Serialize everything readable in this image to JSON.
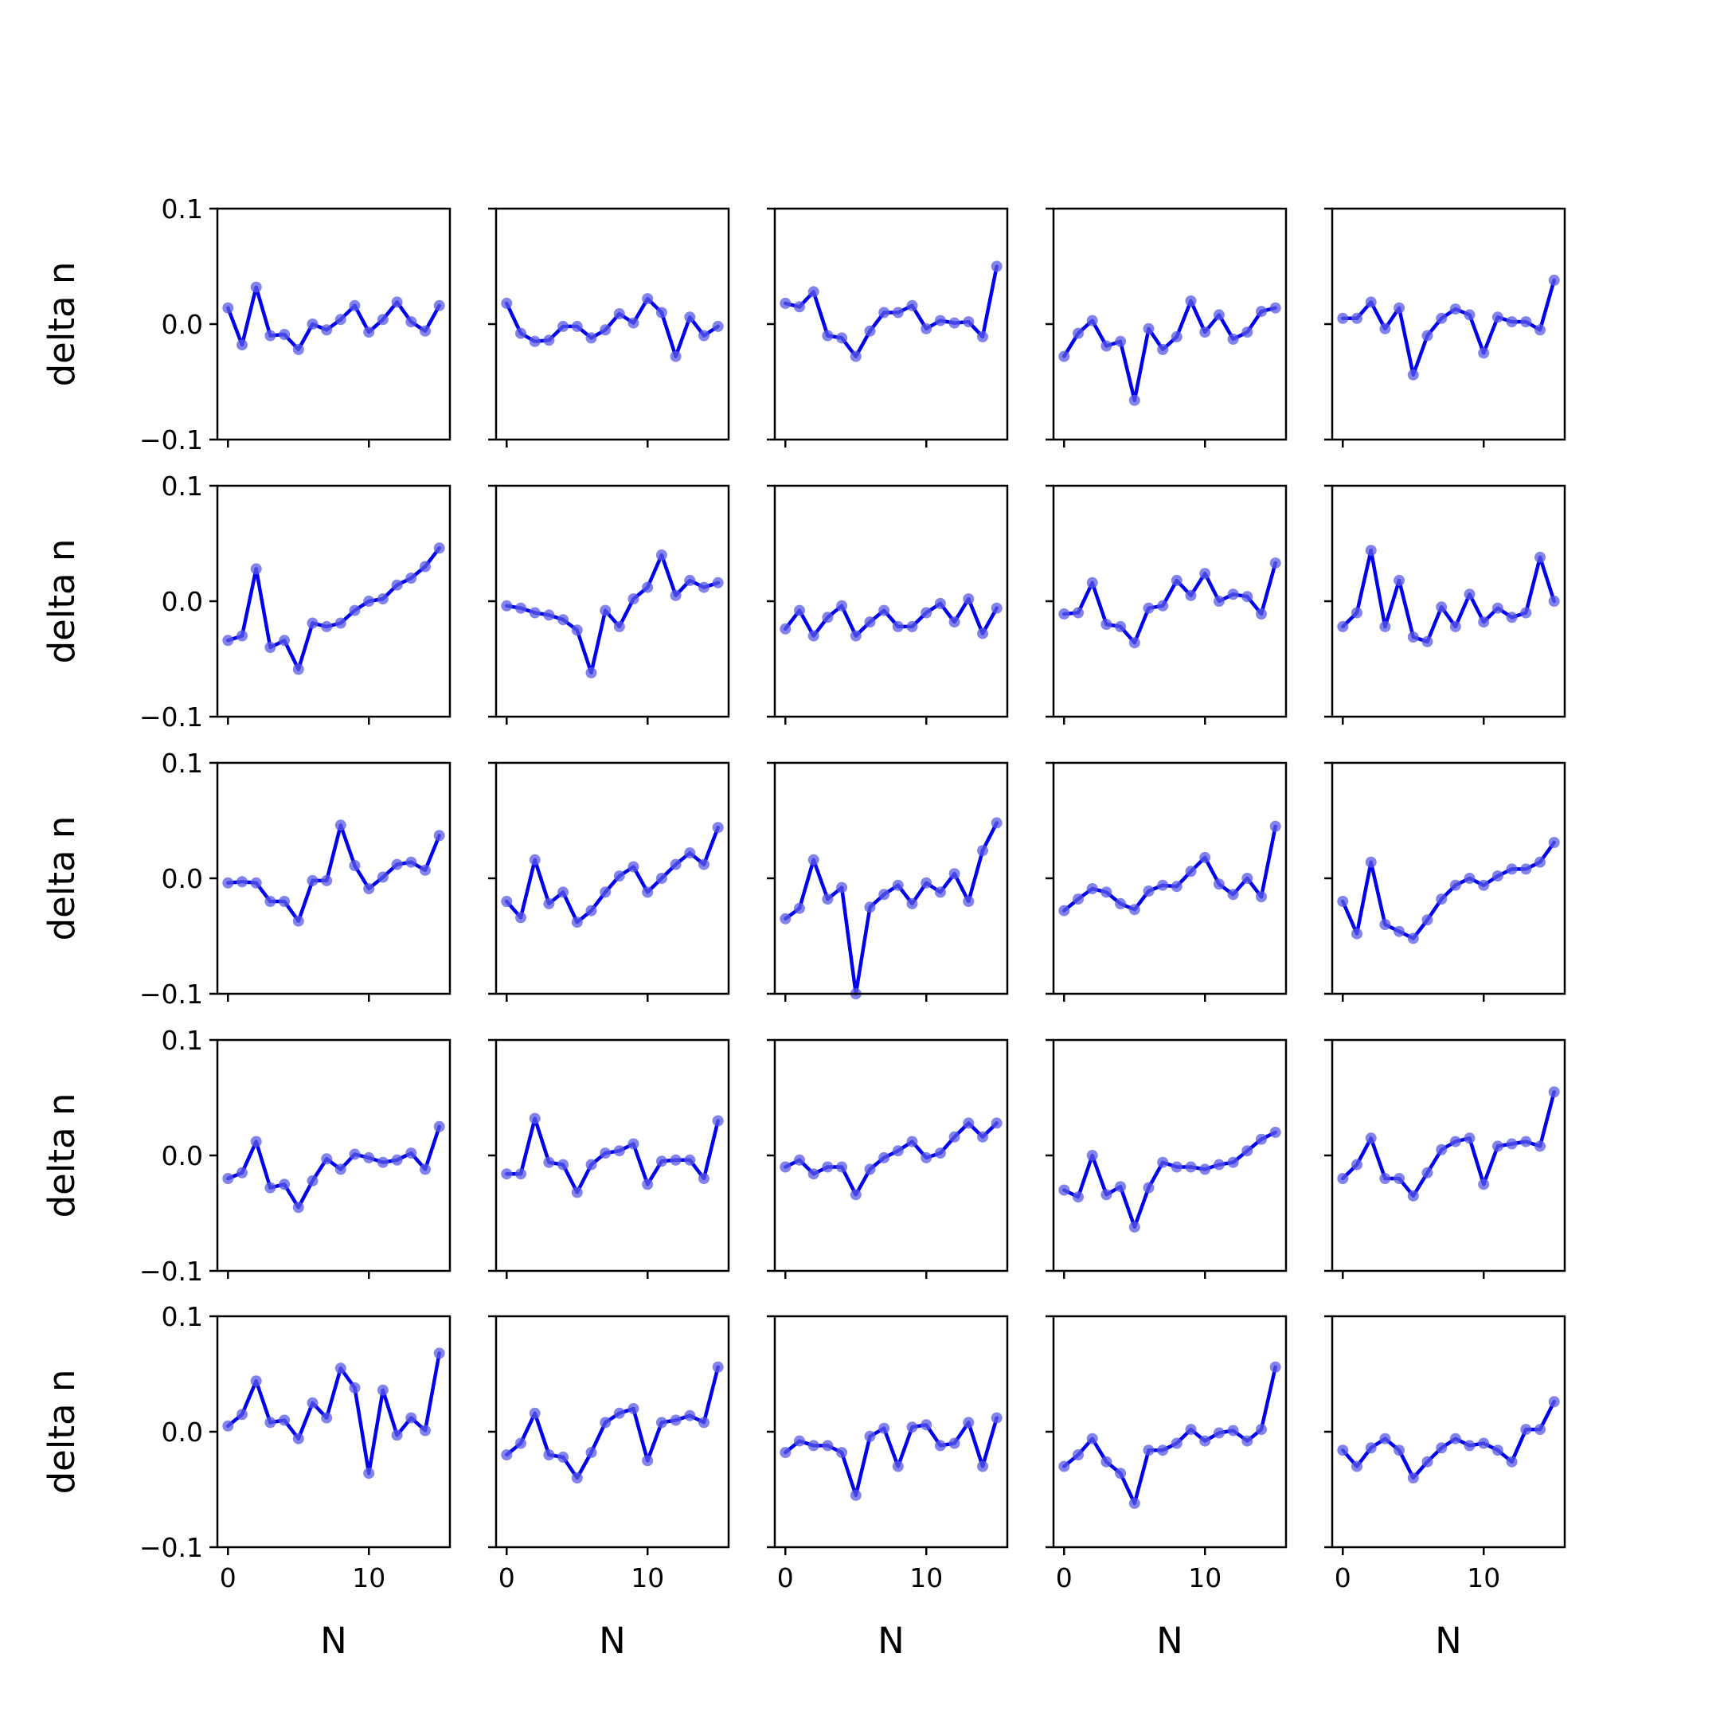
{
  "figure": {
    "grid_rows": 5,
    "grid_cols": 5,
    "line_color": "#0000ee",
    "marker_color": "#5a5ae6"
  },
  "chart_data": {
    "type": "line",
    "layout": "5x5 small multiples, shared x and y axes",
    "xlabel": "N",
    "ylabel": "delta n",
    "x": [
      0,
      1,
      2,
      3,
      4,
      5,
      6,
      7,
      8,
      9,
      10,
      11,
      12,
      13,
      14,
      15
    ],
    "xlim": [
      -0.75,
      15.75
    ],
    "ylim": [
      -0.1,
      0.1
    ],
    "x_ticks": [
      0,
      10
    ],
    "x_tick_labels": [
      "0",
      "10"
    ],
    "y_ticks": [
      -0.1,
      0.0,
      0.1
    ],
    "y_tick_labels": [
      "−0.1",
      "0.0",
      "0.1"
    ],
    "grid": false,
    "panels": [
      [
        0.014,
        -0.018,
        0.032,
        -0.01,
        -0.009,
        -0.022,
        0.0,
        -0.005,
        0.004,
        0.016,
        -0.007,
        0.004,
        0.019,
        0.002,
        -0.006,
        0.016
      ],
      [
        0.018,
        -0.008,
        -0.015,
        -0.014,
        -0.002,
        -0.002,
        -0.012,
        -0.005,
        0.009,
        0.001,
        0.022,
        0.01,
        -0.028,
        0.006,
        -0.01,
        -0.002
      ],
      [
        0.018,
        0.015,
        0.028,
        -0.01,
        -0.012,
        -0.028,
        -0.006,
        0.01,
        0.01,
        0.016,
        -0.004,
        0.003,
        0.001,
        0.002,
        -0.011,
        0.05
      ],
      [
        -0.028,
        -0.008,
        0.003,
        -0.019,
        -0.015,
        -0.066,
        -0.004,
        -0.022,
        -0.011,
        0.02,
        -0.007,
        0.008,
        -0.013,
        -0.007,
        0.011,
        0.014
      ],
      [
        0.005,
        0.005,
        0.019,
        -0.004,
        0.014,
        -0.044,
        -0.01,
        0.005,
        0.013,
        0.008,
        -0.025,
        0.006,
        0.002,
        0.002,
        -0.005,
        0.038
      ],
      [
        -0.034,
        -0.03,
        0.028,
        -0.04,
        -0.034,
        -0.059,
        -0.019,
        -0.022,
        -0.019,
        -0.008,
        0.0,
        0.002,
        0.014,
        0.02,
        0.03,
        0.046
      ],
      [
        -0.004,
        -0.006,
        -0.01,
        -0.012,
        -0.016,
        -0.025,
        -0.062,
        -0.008,
        -0.022,
        0.002,
        0.012,
        0.04,
        0.005,
        0.018,
        0.012,
        0.016
      ],
      [
        -0.024,
        -0.008,
        -0.03,
        -0.014,
        -0.004,
        -0.03,
        -0.018,
        -0.008,
        -0.022,
        -0.022,
        -0.01,
        -0.002,
        -0.018,
        0.002,
        -0.028,
        -0.006
      ],
      [
        -0.011,
        -0.01,
        0.016,
        -0.02,
        -0.022,
        -0.036,
        -0.006,
        -0.004,
        0.018,
        0.005,
        0.024,
        0.0,
        0.006,
        0.004,
        -0.011,
        0.033
      ],
      [
        -0.022,
        -0.01,
        0.044,
        -0.022,
        0.018,
        -0.031,
        -0.035,
        -0.005,
        -0.022,
        0.006,
        -0.018,
        -0.006,
        -0.014,
        -0.01,
        0.038,
        0.0
      ],
      [
        -0.004,
        -0.003,
        -0.004,
        -0.02,
        -0.02,
        -0.037,
        -0.002,
        -0.002,
        0.046,
        0.011,
        -0.009,
        0.001,
        0.012,
        0.014,
        0.007,
        0.037
      ],
      [
        -0.02,
        -0.034,
        0.016,
        -0.022,
        -0.012,
        -0.038,
        -0.028,
        -0.012,
        0.002,
        0.01,
        -0.012,
        0.0,
        0.012,
        0.022,
        0.012,
        0.044
      ],
      [
        -0.035,
        -0.026,
        0.016,
        -0.018,
        -0.008,
        -0.1,
        -0.025,
        -0.014,
        -0.006,
        -0.022,
        -0.004,
        -0.012,
        0.004,
        -0.02,
        0.024,
        0.048
      ],
      [
        -0.028,
        -0.018,
        -0.009,
        -0.012,
        -0.022,
        -0.027,
        -0.011,
        -0.006,
        -0.007,
        0.006,
        0.018,
        -0.005,
        -0.014,
        0.0,
        -0.016,
        0.045
      ],
      [
        -0.02,
        -0.048,
        0.014,
        -0.04,
        -0.046,
        -0.052,
        -0.036,
        -0.018,
        -0.006,
        0.0,
        -0.006,
        0.002,
        0.008,
        0.008,
        0.014,
        0.031
      ]
    ]
  }
}
